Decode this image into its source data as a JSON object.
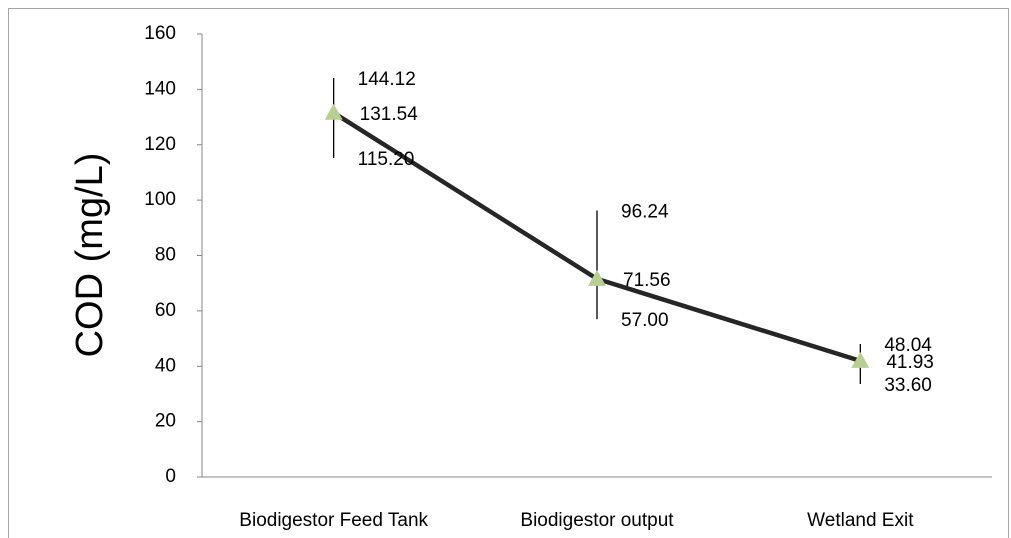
{
  "chart_data": {
    "type": "line",
    "ylabel": "COD (mg/L)",
    "categories": [
      "Biodigestor Feed Tank",
      "Biodigestor output",
      "Wetland Exit"
    ],
    "series": [
      {
        "color": "#262626",
        "marker_color": "#b7cf91",
        "values": [
          131.54,
          71.56,
          41.93
        ]
      },
      {
        "color": "#000000",
        "values": [
          144.12,
          96.24,
          48.04
        ]
      },
      {
        "color": "#000000",
        "values": [
          115.2,
          57,
          33.6
        ],
        "value_labels": [
          "115.20",
          "57.00",
          "33.60"
        ]
      }
    ],
    "ylim": [
      0,
      160
    ],
    "yticks": [
      0,
      20,
      40,
      60,
      80,
      100,
      120,
      140,
      160
    ],
    "grid": false
  }
}
